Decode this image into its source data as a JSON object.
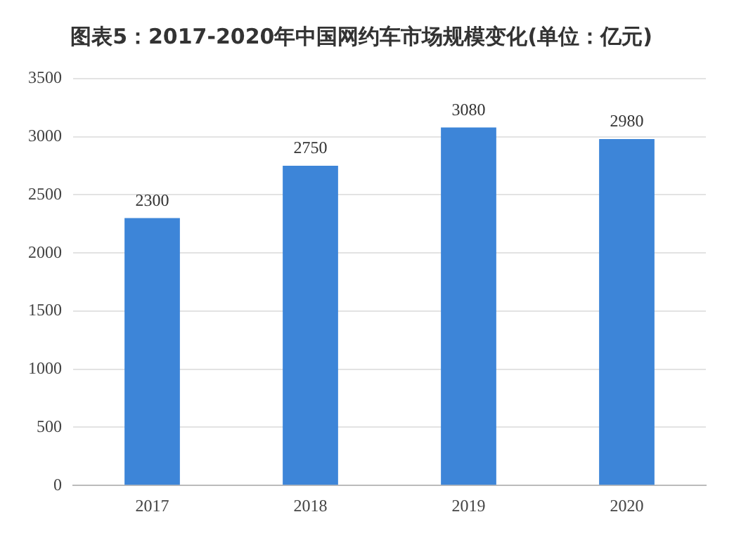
{
  "chart_data": {
    "type": "bar",
    "title": "图表5：2017-2020年中国网约车市场规模变化(单位：亿元)",
    "categories": [
      "2017",
      "2018",
      "2019",
      "2020"
    ],
    "values": [
      2300,
      2750,
      3080,
      2980
    ],
    "color": "#3d85d8",
    "ylim": [
      0,
      3500
    ],
    "yticks": [
      0,
      500,
      1000,
      1500,
      2000,
      2500,
      3000,
      3500
    ],
    "grid": "y",
    "data_labels": true
  }
}
